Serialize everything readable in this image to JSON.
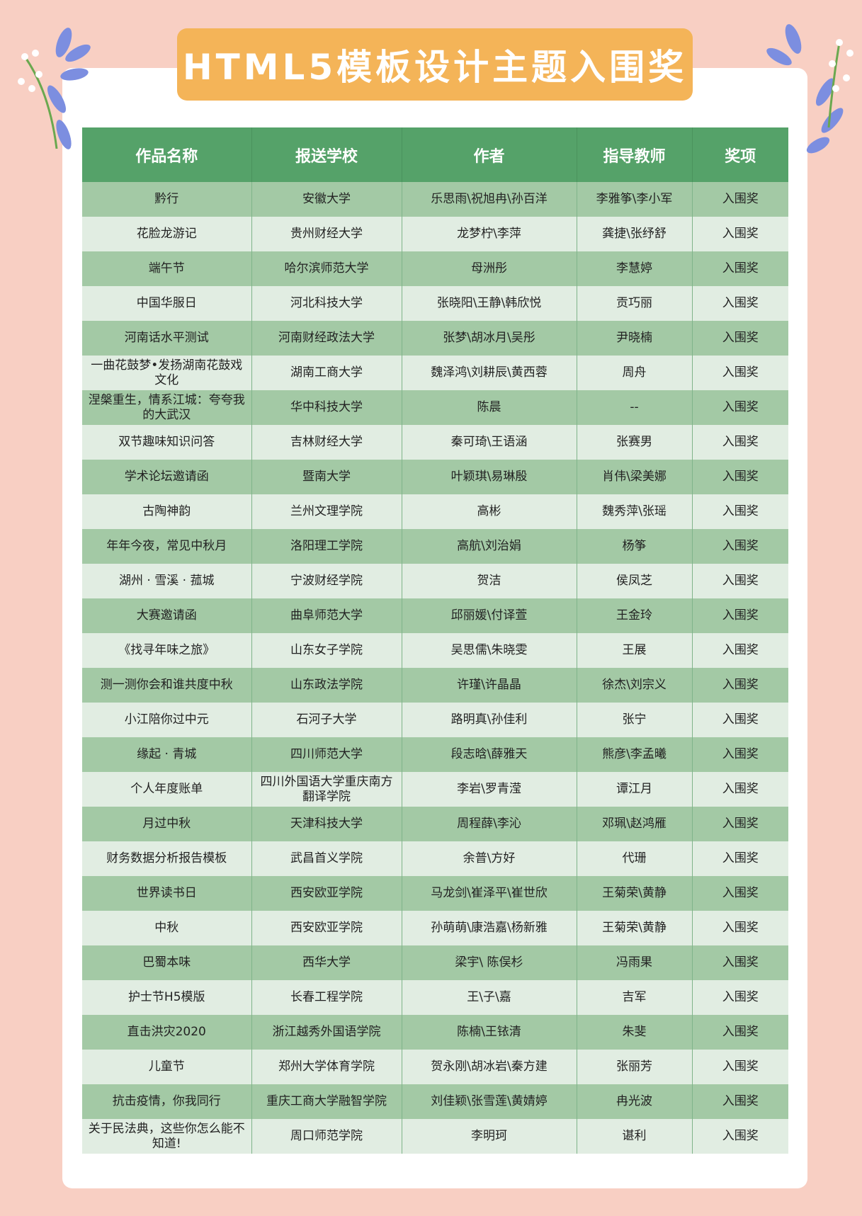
{
  "title": "HTML5模板设计主题入围奖",
  "colors": {
    "background": "#f8cfc3",
    "banner": "#f4b458",
    "header": "#55a269",
    "row_dark": "#a3c9a5",
    "row_light": "#e1ede2"
  },
  "table": {
    "headers": [
      "作品名称",
      "报送学校",
      "作者",
      "指导教师",
      "奖项"
    ],
    "rows": [
      [
        "黔行",
        "安徽大学",
        "乐思雨\\祝旭冉\\孙百洋",
        "李雅筝\\李小军",
        "入围奖"
      ],
      [
        "花脸龙游记",
        "贵州财经大学",
        "龙梦柠\\李萍",
        "龚捷\\张纾舒",
        "入围奖"
      ],
      [
        "端午节",
        "哈尔滨师范大学",
        "母洲彤",
        "李慧婷",
        "入围奖"
      ],
      [
        "中国华服日",
        "河北科技大学",
        "张晓阳\\王静\\韩欣悦",
        "贡巧丽",
        "入围奖"
      ],
      [
        "河南话水平测试",
        "河南财经政法大学",
        "张梦\\胡冰月\\吴彤",
        "尹晓楠",
        "入围奖"
      ],
      [
        "一曲花鼓梦•发扬湖南花鼓戏文化",
        "湖南工商大学",
        "魏泽鸿\\刘耕辰\\黄西蓉",
        "周舟",
        "入围奖"
      ],
      [
        "涅槃重生，情系江城：夸夸我的大武汉",
        "华中科技大学",
        "陈晨",
        "--",
        "入围奖"
      ],
      [
        "双节趣味知识问答",
        "吉林财经大学",
        "秦可琦\\王语涵",
        "张赛男",
        "入围奖"
      ],
      [
        "学术论坛邀请函",
        "暨南大学",
        "叶颖琪\\易琳殷",
        "肖伟\\梁美娜",
        "入围奖"
      ],
      [
        "古陶神韵",
        "兰州文理学院",
        "高彬",
        "魏秀萍\\张瑶",
        "入围奖"
      ],
      [
        "年年今夜，常见中秋月",
        "洛阳理工学院",
        "高航\\刘治娟",
        "杨筝",
        "入围奖"
      ],
      [
        "湖州 · 雪溪 · 菰城",
        "宁波财经学院",
        "贺洁",
        "侯凤芝",
        "入围奖"
      ],
      [
        "大赛邀请函",
        "曲阜师范大学",
        "邱丽媛\\付译萱",
        "王金玲",
        "入围奖"
      ],
      [
        "《找寻年味之旅》",
        "山东女子学院",
        "吴思儒\\朱晓雯",
        "王展",
        "入围奖"
      ],
      [
        "测一测你会和谁共度中秋",
        "山东政法学院",
        "许瑾\\许晶晶",
        "徐杰\\刘宗义",
        "入围奖"
      ],
      [
        "小江陪你过中元",
        "石河子大学",
        "路明真\\孙佳利",
        "张宁",
        "入围奖"
      ],
      [
        "缘起 · 青城",
        "四川师范大学",
        "段志晗\\薛雅天",
        "熊彦\\李孟曦",
        "入围奖"
      ],
      [
        "个人年度账单",
        "四川外国语大学重庆南方翻译学院",
        "李岩\\罗青滢",
        "谭江月",
        "入围奖"
      ],
      [
        "月过中秋",
        "天津科技大学",
        "周程薛\\李沁",
        "邓珮\\赵鸿雁",
        "入围奖"
      ],
      [
        "财务数据分析报告模板",
        "武昌首义学院",
        "余普\\方好",
        "代珊",
        "入围奖"
      ],
      [
        "世界读书日",
        "西安欧亚学院",
        "马龙剑\\崔泽平\\崔世欣",
        "王菊荣\\黄静",
        "入围奖"
      ],
      [
        "中秋",
        "西安欧亚学院",
        "孙萌萌\\康浩嘉\\杨新雅",
        "王菊荣\\黄静",
        "入围奖"
      ],
      [
        "巴蜀本味",
        "西华大学",
        "梁宇\\ 陈俣杉",
        "冯雨果",
        "入围奖"
      ],
      [
        "护士节H5模版",
        "长春工程学院",
        "王\\子\\嘉",
        "吉军",
        "入围奖"
      ],
      [
        "直击洪灾2020",
        "浙江越秀外国语学院",
        "陈楠\\王铱清",
        "朱斐",
        "入围奖"
      ],
      [
        "儿童节",
        "郑州大学体育学院",
        "贺永刚\\胡冰岩\\秦方建",
        "张丽芳",
        "入围奖"
      ],
      [
        "抗击疫情，你我同行",
        "重庆工商大学融智学院",
        "刘佳颖\\张雪莲\\黄婧婷",
        "冉光波",
        "入围奖"
      ],
      [
        "关于民法典，这些你怎么能不知道!",
        "周口师范学院",
        "李明珂",
        "谌利",
        "入围奖"
      ]
    ]
  }
}
